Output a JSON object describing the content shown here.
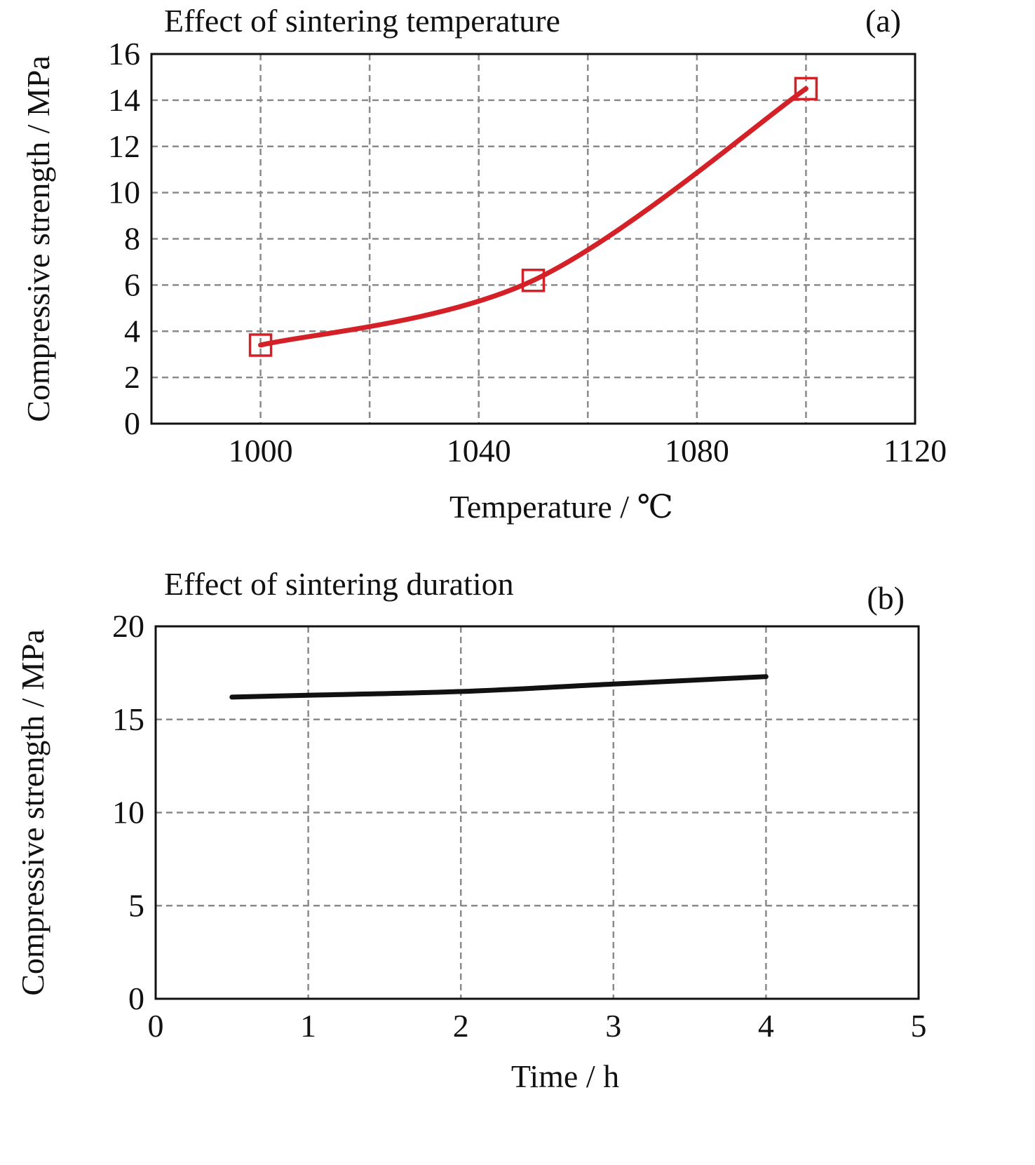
{
  "chart_data": [
    {
      "type": "line",
      "title": "Effect of sintering temperature",
      "panel_label": "(a)",
      "xlabel": "Temperature / ℃",
      "ylabel": "Compressive strength / MPa",
      "xlim": [
        980,
        1120
      ],
      "ylim": [
        0,
        16
      ],
      "xticks": [
        1000,
        1040,
        1080,
        1120
      ],
      "xtick_labels": [
        "1000",
        "1040",
        "1080",
        "1120"
      ],
      "xgrid": [
        1000,
        1020,
        1040,
        1060,
        1080,
        1100
      ],
      "yticks": [
        0,
        2,
        4,
        6,
        8,
        10,
        12,
        14,
        16
      ],
      "ytick_labels": [
        "0",
        "2",
        "4",
        "6",
        "8",
        "10",
        "12",
        "14",
        "16"
      ],
      "grid": true,
      "series": [
        {
          "x": [
            1000,
            1050,
            1100
          ],
          "y": [
            3.4,
            6.2,
            14.5
          ],
          "color": "#d42027",
          "marker": "square-open",
          "smooth": true
        }
      ]
    },
    {
      "type": "line",
      "title": "Effect of sintering duration",
      "panel_label": "(b)",
      "xlabel": "Time / h",
      "ylabel": "Compressive strength / MPa",
      "xlim": [
        0,
        5
      ],
      "ylim": [
        0,
        20
      ],
      "xticks": [
        0,
        1,
        2,
        3,
        4,
        5
      ],
      "xtick_labels": [
        "0",
        "1",
        "2",
        "3",
        "4",
        "5"
      ],
      "yticks": [
        0,
        5,
        10,
        15,
        20
      ],
      "ytick_labels": [
        "0",
        "5",
        "10",
        "15",
        "20"
      ],
      "grid": true,
      "series": [
        {
          "x": [
            0.5,
            1,
            2,
            3,
            4
          ],
          "y": [
            16.2,
            16.3,
            16.5,
            16.9,
            17.3
          ],
          "color": "#111111",
          "marker": "none",
          "smooth": true
        }
      ]
    }
  ]
}
